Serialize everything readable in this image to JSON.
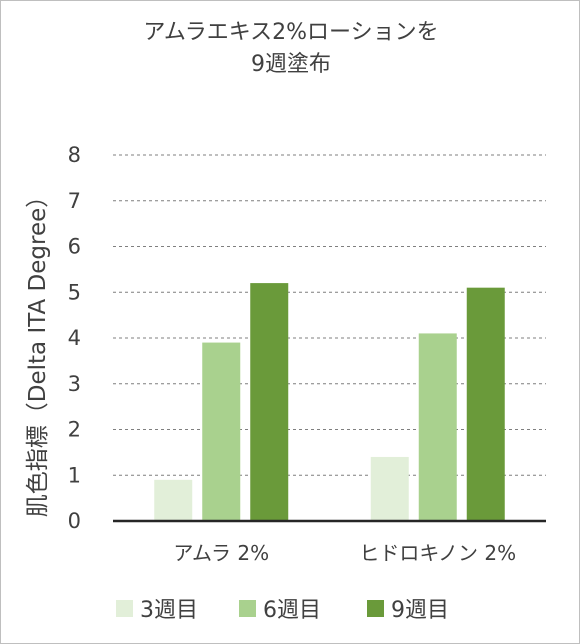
{
  "chart_data": {
    "type": "bar",
    "title_lines": [
      "アムラエキス2%ローションを",
      "9週塗布"
    ],
    "ylabel": "肌色指標（Delta ITA Degree）",
    "xlabel": "",
    "ylim": [
      0,
      8
    ],
    "yticks": [
      "0",
      "1",
      "2",
      "3",
      "4",
      "5",
      "6",
      "7",
      "8"
    ],
    "grid": true,
    "legend_position": "bottom",
    "categories": [
      "アムラ 2%",
      "ヒドロキノン 2%"
    ],
    "series": [
      {
        "name": "3週目",
        "values": [
          0.9,
          1.4
        ],
        "color": "#e2efd9"
      },
      {
        "name": "6週目",
        "values": [
          3.9,
          4.1
        ],
        "color": "#a9d18e"
      },
      {
        "name": "9週目",
        "values": [
          5.2,
          5.1
        ],
        "color": "#6a9a3a"
      }
    ]
  }
}
